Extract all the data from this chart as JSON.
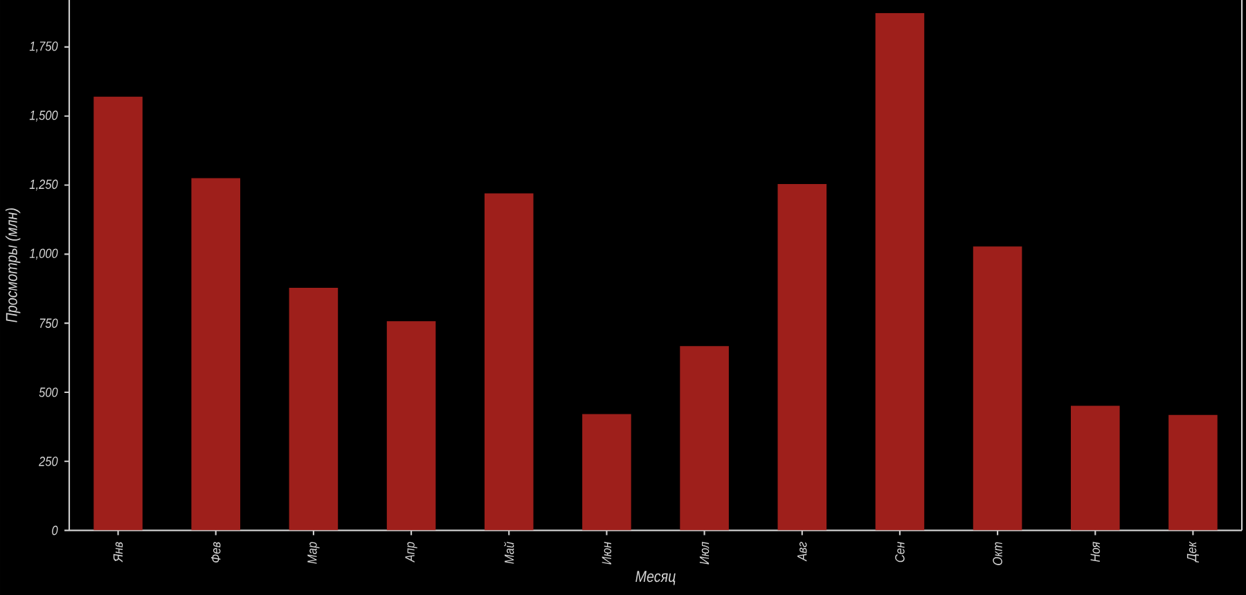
{
  "chart_data": {
    "type": "bar",
    "xlabel": "Месяц",
    "ylabel": "Просмотры (млн)",
    "categories": [
      "Янв",
      "Фев",
      "Мар",
      "Апр",
      "Май",
      "Июн",
      "Июл",
      "Авг",
      "Сен",
      "Окт",
      "Ноя",
      "Дек"
    ],
    "values": [
      1570,
      1275,
      878,
      757,
      1220,
      421,
      667,
      1254,
      1873,
      1028,
      451,
      418
    ],
    "color": "#9e1f1b",
    "ylim": [
      0,
      1920
    ],
    "yticks": [
      0,
      250,
      500,
      750,
      {
        "value": 1000,
        "label": "1,000"
      },
      {
        "value": 1250,
        "label": "1,250"
      },
      {
        "value": 1500,
        "label": "1,500"
      },
      {
        "value": 1750,
        "label": "1,750"
      }
    ]
  }
}
